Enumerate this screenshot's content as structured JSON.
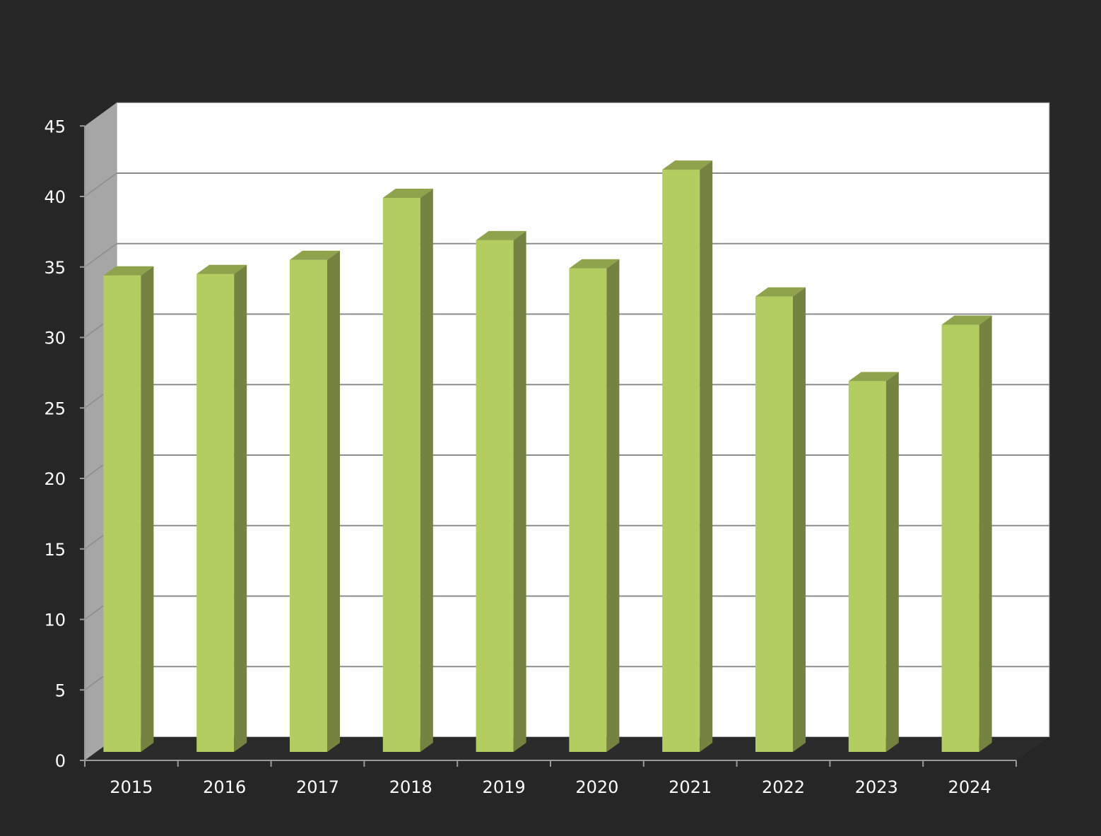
{
  "chart_data": {
    "type": "bar",
    "style": "3d",
    "title": "",
    "xlabel": "",
    "ylabel": "",
    "categories": [
      "2015",
      "2016",
      "2017",
      "2018",
      "2019",
      "2020",
      "2021",
      "2022",
      "2023",
      "2024"
    ],
    "values": [
      33.8,
      33.9,
      34.9,
      39.3,
      36.3,
      34.3,
      41.3,
      32.3,
      26.3,
      30.3
    ],
    "ylim": [
      0,
      45
    ],
    "yticks": [
      "0",
      "5",
      "10",
      "15",
      "20",
      "25",
      "30",
      "35",
      "40",
      "45"
    ],
    "grid": true,
    "legend": "none",
    "colors": {
      "background": "#262626",
      "plot_area": "#ffffff",
      "side_wall": "#a6a6a6",
      "floor": "#2b2b2b",
      "gridline": "#8c8c8c",
      "bar_front": "#b3cd61",
      "bar_side": "#758340",
      "bar_top": "#8fa34d",
      "text": "#ffffff"
    }
  }
}
